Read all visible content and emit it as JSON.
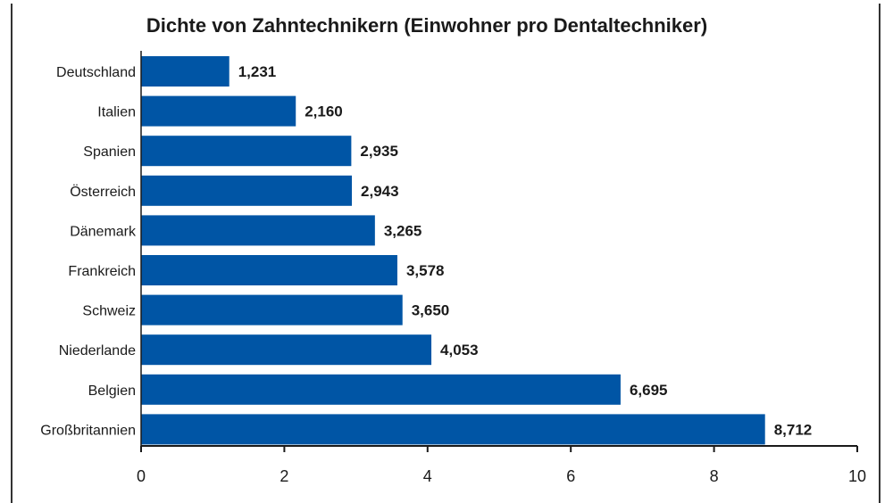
{
  "chart_data": {
    "type": "bar",
    "orientation": "horizontal",
    "title": "Dichte von Zahntechnikern (Einwohner pro Dentaltechniker)",
    "xlabel": "",
    "ylabel": "",
    "categories": [
      "Deutschland",
      "Italien",
      "Spanien",
      "Österreich",
      "Dänemark",
      "Frankreich",
      "Schweiz",
      "Niederlande",
      "Belgien",
      "Großbritannien"
    ],
    "values": [
      1.231,
      2.16,
      2.935,
      2.943,
      3.265,
      3.578,
      3.65,
      4.053,
      6.695,
      8.712
    ],
    "value_labels": [
      "1,231",
      "2,160",
      "2,935",
      "2,943",
      "3,265",
      "3,578",
      "3,650",
      "4,053",
      "6,695",
      "8,712"
    ],
    "xlim": [
      0,
      10
    ],
    "xticks": [
      "0",
      "2",
      "4",
      "6",
      "8",
      "10"
    ],
    "bar_color": "#0055a5",
    "grid": false,
    "legend": "none"
  }
}
